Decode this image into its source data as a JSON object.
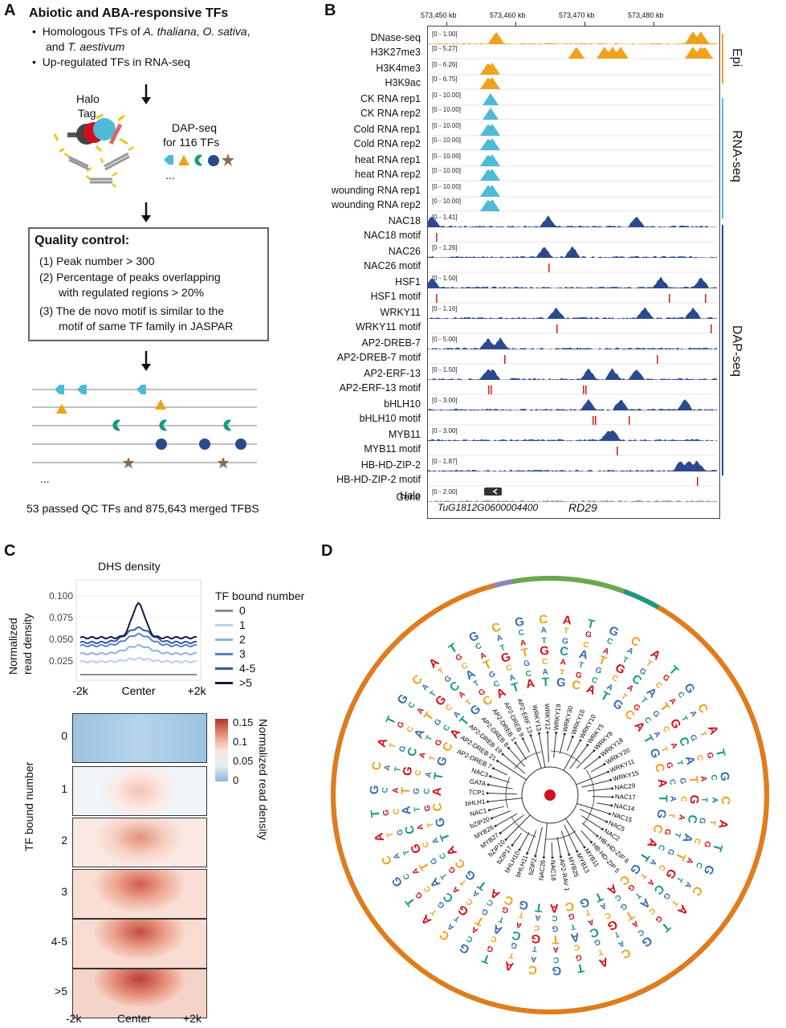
{
  "panelA": {
    "letter": "A",
    "title": "Abiotic and ABA-responsive TFs",
    "bullet1_prefix": "Homologous TFs of ",
    "bullet1_sp1": "A. thaliana",
    "bullet1_mid": ", ",
    "bullet1_sp2": "O. sativa",
    "bullet1_end": ",",
    "bullet1_line2_prefix": "and ",
    "bullet1_sp3": "T. aestivum",
    "bullet2": "Up-regulated TFs in RNA-seq",
    "halo1": "Halo",
    "halo2": "Tag",
    "dap1": "DAP-seq",
    "dap2": "for 116 TFs",
    "ellipsis": "...",
    "qc_title": "Quality control:",
    "qc1": "(1) Peak number > 300",
    "qc2a": "(2) Percentage of peaks overlapping",
    "qc2b": "with regulated regions > 20%",
    "qc3a": "(3) The de novo motif is similar to the",
    "qc3b": "motif of same TF family in JASPAR",
    "ellipsis2": "...",
    "summary": "53 passed QC TFs and 875,643 merged TFBS"
  },
  "panelB": {
    "letter": "B",
    "coords": [
      "573,450 kb",
      "573,460 kb",
      "573,470 kb",
      "573,480 kb"
    ],
    "tracks": [
      {
        "label": "DNase-seq",
        "range": "[0 - 1.00]"
      },
      {
        "label": "H3K27me3",
        "range": "[0 - 5.27]"
      },
      {
        "label": "H3K4me3",
        "range": "[0 - 6.26]"
      },
      {
        "label": "H3K9ac",
        "range": "[0 - 6.75]"
      },
      {
        "label": "CK RNA rep1",
        "range": "[0 - 10.00]"
      },
      {
        "label": "CK RNA rep2",
        "range": "[0 - 10.00]"
      },
      {
        "label": "Cold RNA rep1",
        "range": "[0 - 10.00]"
      },
      {
        "label": "Cold RNA rep2",
        "range": "[0 - 10.00]"
      },
      {
        "label": "heat RNA rep1",
        "range": "[0 - 10.00]"
      },
      {
        "label": "heat RNA rep2",
        "range": "[0 - 10.00]"
      },
      {
        "label": "wounding RNA rep1",
        "range": "[0 - 10.00]"
      },
      {
        "label": "wounding RNA rep2",
        "range": "[0 - 10.00]"
      },
      {
        "label": "NAC18",
        "range": "[0 - 1.41]"
      },
      {
        "label": "NAC18 motif",
        "range": ""
      },
      {
        "label": "NAC26",
        "range": "[0 - 1.26]"
      },
      {
        "label": "NAC26 motif",
        "range": ""
      },
      {
        "label": "HSF1",
        "range": "[0 - 1.50]"
      },
      {
        "label": "HSF1 motif",
        "range": ""
      },
      {
        "label": "WRKY11",
        "range": "[0 - 1.16]"
      },
      {
        "label": "WRKY11 motif",
        "range": ""
      },
      {
        "label": "AP2-DREB-7",
        "range": "[0 - 5.00]"
      },
      {
        "label": "AP2-DREB-7 motif",
        "range": ""
      },
      {
        "label": "AP2-ERF-13",
        "range": "[0 - 1.50]"
      },
      {
        "label": "AP2-ERF-13 motif",
        "range": ""
      },
      {
        "label": "bHLH10",
        "range": "[0 - 3.00]"
      },
      {
        "label": "bHLH10 motif",
        "range": ""
      },
      {
        "label": "MYB11",
        "range": "[0 - 3.00]"
      },
      {
        "label": "MYB11 motif",
        "range": ""
      },
      {
        "label": "HB-HD-ZIP-2",
        "range": "[0 - 1.87]"
      },
      {
        "label": "HB-HD-ZIP-2 motif",
        "range": ""
      },
      {
        "label": "Halo",
        "range": "[0 - 2.00]"
      }
    ],
    "gene_label": "Gene",
    "gene_id": "TuG1812G0600004400",
    "gene_name": "RD29",
    "side_epi": "Epi",
    "side_rna": "RNA-seq",
    "side_dap": "DAP-seq",
    "colors": {
      "epi": "#f0a21e",
      "rna": "#4fb9d8",
      "dap": "#2b4a8b",
      "motif": "#d42a1e"
    }
  },
  "panelC": {
    "letter": "C",
    "title": "DHS density",
    "ylabel1": "Normalized",
    "ylabel2": "read density",
    "yticks": [
      "0.100",
      "0.075",
      "0.050",
      "0.025"
    ],
    "xticks": [
      "-2k",
      "Center",
      "+2k"
    ],
    "legend_title": "TF bound number",
    "legend": [
      {
        "label": "0",
        "color": "#8c8c8c"
      },
      {
        "label": "1",
        "color": "#bcd0ea"
      },
      {
        "label": "2",
        "color": "#8fb0e0"
      },
      {
        "label": "3",
        "color": "#5b7fcf"
      },
      {
        "label": "4-5",
        "color": "#3a55a8"
      },
      {
        "label": ">5",
        "color": "#121a45"
      }
    ],
    "heatmap_rows": [
      "0",
      "1",
      "2",
      "3",
      "4-5",
      ">5"
    ],
    "heatmap_ylabel": "TF bound number",
    "heatmap_xticks": [
      "-2k",
      "Center",
      "+2k"
    ],
    "colorbar_ticks": [
      "0.15",
      "0.1",
      "0.05",
      "0"
    ],
    "colorbar_label": "Normalized read density"
  },
  "panelD": {
    "letter": "D",
    "leaves": [
      "WRKY13",
      "WRKY12",
      "WRKY19",
      "WRKY30",
      "WRKY16",
      "WRKY10",
      "WRKY5",
      "WRKY8",
      "WRKY18",
      "WRKY20",
      "WRKY11",
      "WRKY15",
      "NAC29",
      "NAC17",
      "NAC14",
      "NAC15",
      "NAC5",
      "NAC2",
      "HB-HD-ZIP 6",
      "HB-HD-ZIP 5",
      "MYB11",
      "MYB13",
      "MYB25",
      "AP2-RAV 1",
      "NAC18",
      "NAC26",
      "bZIP2",
      "bHLH11",
      "bHLH10",
      "bZIP17",
      "bZIP10",
      "MYB27",
      "MYB26",
      "bZIP20",
      "NAC1",
      "bHLH1",
      "TCP1",
      "GATA",
      "NAC3",
      "AP2-DREB 7",
      "AP2-DREB 21",
      "AP2-DREB 19",
      "AP2-DREB 8",
      "AP2-DREB 1",
      "AP2-DREB 9",
      "AP2-ERF 13"
    ]
  }
}
